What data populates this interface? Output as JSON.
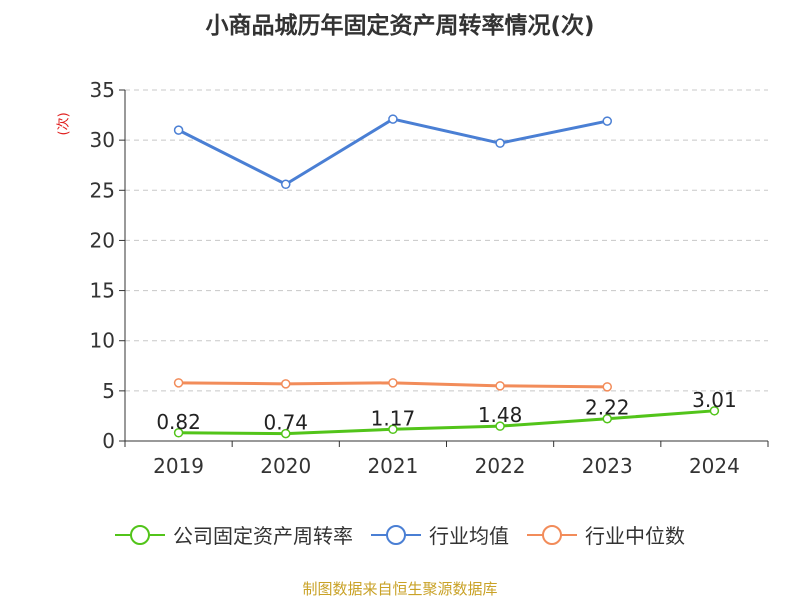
{
  "chart_data": {
    "type": "line",
    "title": "小商品城历年固定资产周转率情况(次)",
    "ylabel": "(次)",
    "xlabel": "",
    "categories": [
      "2019",
      "2020",
      "2021",
      "2022",
      "2023",
      "2024"
    ],
    "ylim": [
      0,
      35
    ],
    "yticks": [
      "0",
      "5",
      "10",
      "15",
      "20",
      "25",
      "30",
      "35"
    ],
    "grid": "horizontal dashed",
    "legend_position": "bottom",
    "series": [
      {
        "name": "公司固定资产周转率",
        "color": "#52c41a",
        "values": [
          0.82,
          0.74,
          1.17,
          1.48,
          2.22,
          3.01
        ],
        "labels": [
          "0.82",
          "0.74",
          "1.17",
          "1.48",
          "2.22",
          "3.01"
        ]
      },
      {
        "name": "行业均值",
        "color": "#4a7fd4",
        "values": [
          31.0,
          25.6,
          32.1,
          29.7,
          31.9,
          null
        ]
      },
      {
        "name": "行业中位数",
        "color": "#f28c5a",
        "values": [
          5.8,
          5.7,
          5.8,
          5.5,
          5.4,
          null
        ]
      }
    ]
  },
  "source": "制图数据来自恒生聚源数据库"
}
